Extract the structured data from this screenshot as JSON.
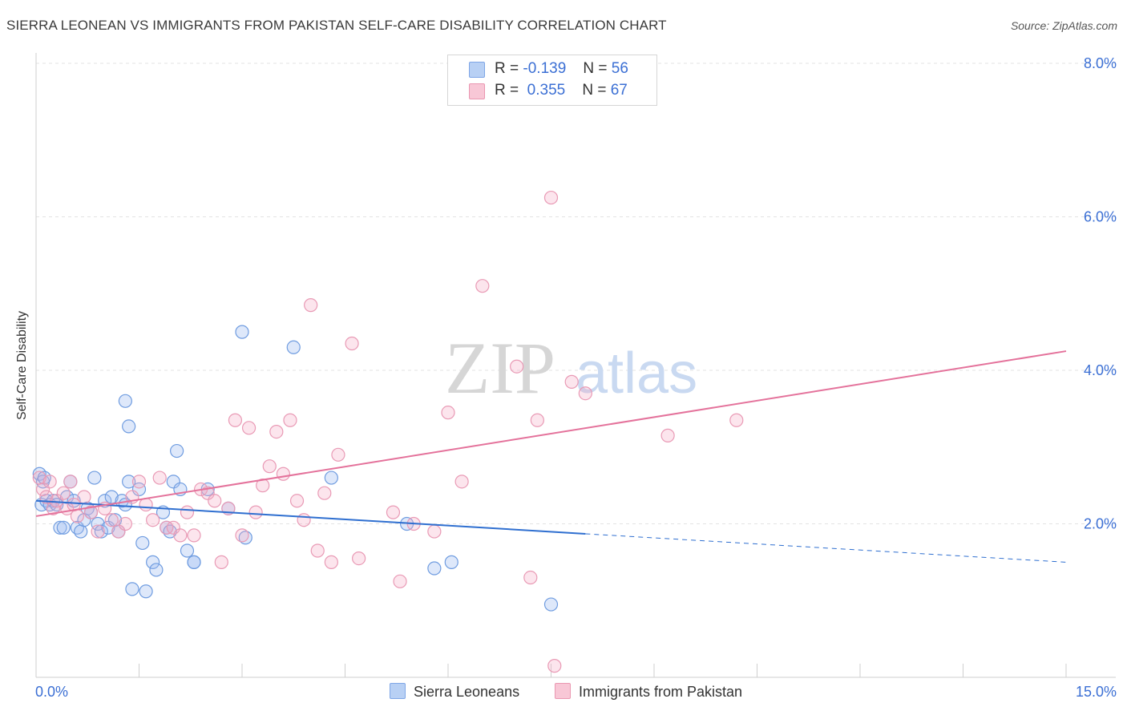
{
  "title": "SIERRA LEONEAN VS IMMIGRANTS FROM PAKISTAN SELF-CARE DISABILITY CORRELATION CHART",
  "source": "Source: ZipAtlas.com",
  "watermark": {
    "zip": "ZIP",
    "atlas": "atlas"
  },
  "legend": {
    "r_label": "R =",
    "n_label": "N =",
    "rows": [
      {
        "r": "-0.139",
        "n": "56",
        "fill": "#b8d0f4",
        "stroke": "#7ea6e6"
      },
      {
        "r": "0.355",
        "n": "67",
        "fill": "#f8c7d6",
        "stroke": "#ea97b1"
      }
    ]
  },
  "bottom_legend": [
    {
      "label": "Sierra Leoneans",
      "fill": "#b8d0f4",
      "stroke": "#7ea6e6"
    },
    {
      "label": "Immigrants from Pakistan",
      "fill": "#f8c7d6",
      "stroke": "#ea97b1"
    }
  ],
  "colors": {
    "blue_line": "#2f6fd0",
    "pink_line": "#e4729b",
    "blue_point_fill": "rgba(160,190,240,0.35)",
    "blue_point_stroke": "#6f9ce0",
    "pink_point_fill": "rgba(245,170,195,0.30)",
    "pink_point_stroke": "#e99ab5",
    "grid": "#e3e3e3",
    "tick_text": "#3b6fd4"
  },
  "chart_data": {
    "type": "scatter",
    "title": "SIERRA LEONEAN VS IMMIGRANTS FROM PAKISTAN SELF-CARE DISABILITY CORRELATION CHART",
    "xlabel": "",
    "ylabel": "Self-Care Disability",
    "xlim": [
      0,
      15
    ],
    "ylim": [
      0,
      8
    ],
    "x_tick_labels": [
      {
        "value": 0,
        "label": "0.0%"
      },
      {
        "value": 15,
        "label": "15.0%"
      }
    ],
    "y_tick_labels": [
      {
        "value": 2,
        "label": "2.0%"
      },
      {
        "value": 4,
        "label": "4.0%"
      },
      {
        "value": 6,
        "label": "6.0%"
      },
      {
        "value": 8,
        "label": "8.0%"
      }
    ],
    "x_minor_ticks": [
      0,
      1.5,
      3,
      4.5,
      6,
      7.5,
      9,
      10.5,
      12,
      13.5,
      15
    ],
    "grid": true,
    "series": [
      {
        "name": "Sierra Leoneans",
        "trend": {
          "x0": 0,
          "y0": 2.3,
          "x1": 8.0,
          "y1": 1.87,
          "dashed_to_x": 15,
          "dashed_to_y": 1.5
        },
        "points": [
          [
            0.05,
            2.65
          ],
          [
            0.08,
            2.25
          ],
          [
            0.1,
            2.55
          ],
          [
            0.12,
            2.6
          ],
          [
            0.15,
            2.3
          ],
          [
            0.2,
            2.25
          ],
          [
            0.25,
            2.3
          ],
          [
            0.3,
            2.25
          ],
          [
            0.35,
            1.95
          ],
          [
            0.4,
            1.95
          ],
          [
            0.45,
            2.35
          ],
          [
            0.5,
            2.55
          ],
          [
            0.55,
            2.3
          ],
          [
            0.6,
            1.95
          ],
          [
            0.65,
            1.9
          ],
          [
            0.7,
            2.05
          ],
          [
            0.75,
            2.2
          ],
          [
            0.8,
            2.15
          ],
          [
            0.85,
            2.6
          ],
          [
            0.9,
            2.0
          ],
          [
            0.95,
            1.9
          ],
          [
            1.0,
            2.3
          ],
          [
            1.05,
            1.95
          ],
          [
            1.1,
            2.35
          ],
          [
            1.15,
            2.05
          ],
          [
            1.2,
            1.9
          ],
          [
            1.25,
            2.3
          ],
          [
            1.3,
            2.25
          ],
          [
            1.35,
            2.55
          ],
          [
            1.4,
            1.15
          ],
          [
            1.5,
            2.45
          ],
          [
            1.55,
            1.75
          ],
          [
            1.6,
            1.12
          ],
          [
            1.7,
            1.5
          ],
          [
            1.75,
            1.4
          ],
          [
            1.85,
            2.15
          ],
          [
            1.9,
            1.95
          ],
          [
            1.95,
            1.9
          ],
          [
            2.0,
            2.55
          ],
          [
            2.1,
            2.45
          ],
          [
            2.2,
            1.65
          ],
          [
            2.3,
            1.5
          ],
          [
            2.5,
            2.45
          ],
          [
            2.8,
            2.2
          ],
          [
            3.0,
            4.5
          ],
          [
            3.05,
            1.82
          ],
          [
            3.75,
            4.3
          ],
          [
            4.3,
            2.6
          ],
          [
            5.4,
            2.0
          ],
          [
            5.8,
            1.42
          ],
          [
            6.05,
            1.5
          ],
          [
            7.5,
            0.95
          ],
          [
            1.3,
            3.6
          ],
          [
            1.35,
            3.27
          ],
          [
            2.05,
            2.95
          ],
          [
            2.3,
            1.5
          ]
        ]
      },
      {
        "name": "Immigrants from Pakistan",
        "trend": {
          "x0": 0,
          "y0": 2.1,
          "x1": 15,
          "y1": 4.25
        },
        "points": [
          [
            0.05,
            2.6
          ],
          [
            0.1,
            2.45
          ],
          [
            0.15,
            2.35
          ],
          [
            0.2,
            2.55
          ],
          [
            0.25,
            2.2
          ],
          [
            0.3,
            2.3
          ],
          [
            0.4,
            2.4
          ],
          [
            0.45,
            2.2
          ],
          [
            0.5,
            2.55
          ],
          [
            0.55,
            2.25
          ],
          [
            0.6,
            2.1
          ],
          [
            0.7,
            2.35
          ],
          [
            0.8,
            2.15
          ],
          [
            0.9,
            1.9
          ],
          [
            1.0,
            2.2
          ],
          [
            1.1,
            2.05
          ],
          [
            1.2,
            1.9
          ],
          [
            1.3,
            2.0
          ],
          [
            1.4,
            2.35
          ],
          [
            1.5,
            2.55
          ],
          [
            1.6,
            2.25
          ],
          [
            1.7,
            2.05
          ],
          [
            1.8,
            2.6
          ],
          [
            1.9,
            1.95
          ],
          [
            2.0,
            1.95
          ],
          [
            2.1,
            1.85
          ],
          [
            2.2,
            2.15
          ],
          [
            2.3,
            1.85
          ],
          [
            2.4,
            2.45
          ],
          [
            2.5,
            2.4
          ],
          [
            2.6,
            2.3
          ],
          [
            2.7,
            1.5
          ],
          [
            2.8,
            2.2
          ],
          [
            2.9,
            3.35
          ],
          [
            3.0,
            1.85
          ],
          [
            3.1,
            3.25
          ],
          [
            3.2,
            2.15
          ],
          [
            3.3,
            2.5
          ],
          [
            3.4,
            2.75
          ],
          [
            3.5,
            3.2
          ],
          [
            3.6,
            2.65
          ],
          [
            3.7,
            3.35
          ],
          [
            3.8,
            2.3
          ],
          [
            3.9,
            2.05
          ],
          [
            4.0,
            4.85
          ],
          [
            4.1,
            1.65
          ],
          [
            4.2,
            2.4
          ],
          [
            4.3,
            1.5
          ],
          [
            4.4,
            2.9
          ],
          [
            4.6,
            4.35
          ],
          [
            4.7,
            1.55
          ],
          [
            5.2,
            2.15
          ],
          [
            5.3,
            1.25
          ],
          [
            5.5,
            2.0
          ],
          [
            5.8,
            1.9
          ],
          [
            6.0,
            3.45
          ],
          [
            6.2,
            2.55
          ],
          [
            6.5,
            5.1
          ],
          [
            7.0,
            4.05
          ],
          [
            7.2,
            1.3
          ],
          [
            7.3,
            3.35
          ],
          [
            7.5,
            6.25
          ],
          [
            7.55,
            0.15
          ],
          [
            7.8,
            3.85
          ],
          [
            8.0,
            3.7
          ],
          [
            9.2,
            3.15
          ],
          [
            10.2,
            3.35
          ]
        ]
      }
    ]
  }
}
